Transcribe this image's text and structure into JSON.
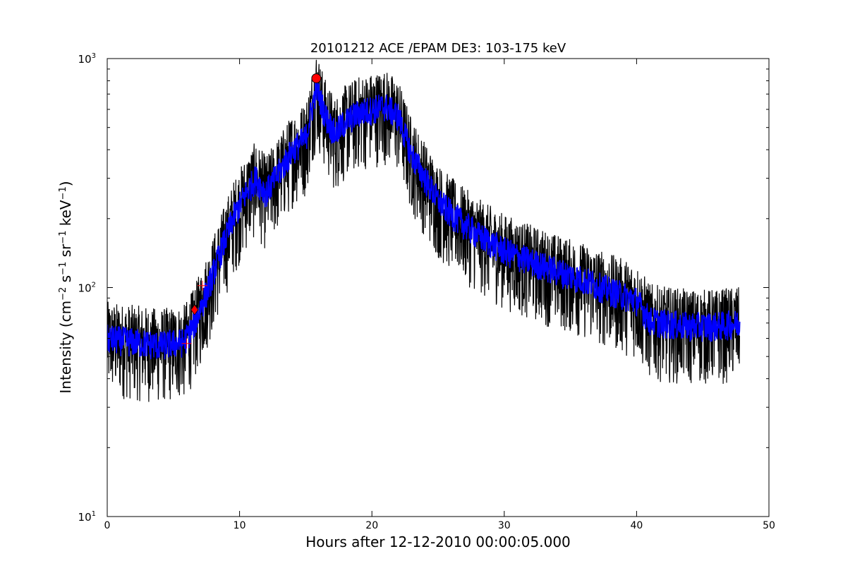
{
  "chart_data": {
    "type": "line",
    "title": "20101212 ACE /EPAM DE3: 103-175 keV",
    "xlabel": "Hours after 12-12-2010 00:00:05.000",
    "ylabel_main": "Intensity (cm",
    "ylabel_parts": [
      {
        "t": "−2",
        "sup": true
      },
      {
        "t": " s",
        "sup": false
      },
      {
        "t": "−1",
        "sup": true
      },
      {
        "t": " sr",
        "sup": false
      },
      {
        "t": "−1",
        "sup": true
      },
      {
        "t": " keV",
        "sup": false
      },
      {
        "t": "−1",
        "sup": true
      },
      {
        "t": ")",
        "sup": false
      }
    ],
    "xlim": [
      0,
      50
    ],
    "ylim": [
      10,
      1000
    ],
    "yscale": "log",
    "x_ticks": [
      0,
      10,
      20,
      30,
      40,
      50
    ],
    "x_tick_labels": [
      "0",
      "10",
      "20",
      "30",
      "40",
      "50"
    ],
    "y_ticks": [
      10,
      100,
      1000
    ],
    "y_tick_labels": [
      {
        "base": "10",
        "exp": "1"
      },
      {
        "base": "10",
        "exp": "2"
      },
      {
        "base": "10",
        "exp": "3"
      }
    ],
    "grid": false,
    "colors": {
      "raw": "#000000",
      "smooth": "#0000ff",
      "marker": "#ff0000"
    },
    "series": [
      {
        "role": "raw",
        "trend": [
          [
            0,
            60
          ],
          [
            2,
            58
          ],
          [
            4,
            56
          ],
          [
            5.8,
            58
          ],
          [
            6.5,
            68
          ],
          [
            7.5,
            95
          ],
          [
            8.5,
            140
          ],
          [
            9.5,
            200
          ],
          [
            10.5,
            260
          ],
          [
            11.2,
            300
          ],
          [
            12,
            260
          ],
          [
            13,
            320
          ],
          [
            14,
            400
          ],
          [
            15,
            450
          ],
          [
            15.8,
            750
          ],
          [
            16.5,
            560
          ],
          [
            17.2,
            470
          ],
          [
            18,
            530
          ],
          [
            19,
            580
          ],
          [
            20,
            600
          ],
          [
            21,
            620
          ],
          [
            22,
            560
          ],
          [
            23,
            380
          ],
          [
            24,
            300
          ],
          [
            25,
            240
          ],
          [
            26,
            210
          ],
          [
            28,
            170
          ],
          [
            30,
            145
          ],
          [
            32,
            130
          ],
          [
            34,
            118
          ],
          [
            36,
            108
          ],
          [
            38,
            97
          ],
          [
            40,
            88
          ],
          [
            41,
            72
          ],
          [
            42,
            70
          ],
          [
            44,
            68
          ],
          [
            46,
            68
          ],
          [
            47.8,
            70
          ]
        ],
        "noise_range": [
          0.55,
          1.45
        ]
      },
      {
        "role": "smoothed",
        "trend": [
          [
            0,
            60
          ],
          [
            2,
            58
          ],
          [
            4,
            56
          ],
          [
            5.8,
            58
          ],
          [
            6.5,
            68
          ],
          [
            7.5,
            95
          ],
          [
            8.5,
            140
          ],
          [
            9.5,
            200
          ],
          [
            10.5,
            260
          ],
          [
            11.2,
            300
          ],
          [
            12,
            260
          ],
          [
            13,
            320
          ],
          [
            14,
            400
          ],
          [
            15,
            450
          ],
          [
            15.8,
            750
          ],
          [
            16.5,
            560
          ],
          [
            17.2,
            470
          ],
          [
            18,
            530
          ],
          [
            19,
            580
          ],
          [
            20,
            600
          ],
          [
            21,
            620
          ],
          [
            22,
            560
          ],
          [
            23,
            380
          ],
          [
            24,
            300
          ],
          [
            25,
            240
          ],
          [
            26,
            210
          ],
          [
            28,
            170
          ],
          [
            30,
            145
          ],
          [
            32,
            130
          ],
          [
            34,
            118
          ],
          [
            36,
            108
          ],
          [
            38,
            97
          ],
          [
            40,
            88
          ],
          [
            41,
            72
          ],
          [
            42,
            70
          ],
          [
            44,
            68
          ],
          [
            46,
            68
          ],
          [
            47.8,
            70
          ]
        ],
        "noise_range": [
          0.85,
          1.15
        ]
      }
    ],
    "markers": [
      {
        "shape": "circle",
        "x": 15.8,
        "y": 820
      },
      {
        "shape": "diamond",
        "x": 6.6,
        "y": 80
      },
      {
        "shape": "plus",
        "x": 6.0,
        "y": 57
      },
      {
        "shape": "plus",
        "x": 7.2,
        "y": 102
      }
    ]
  }
}
